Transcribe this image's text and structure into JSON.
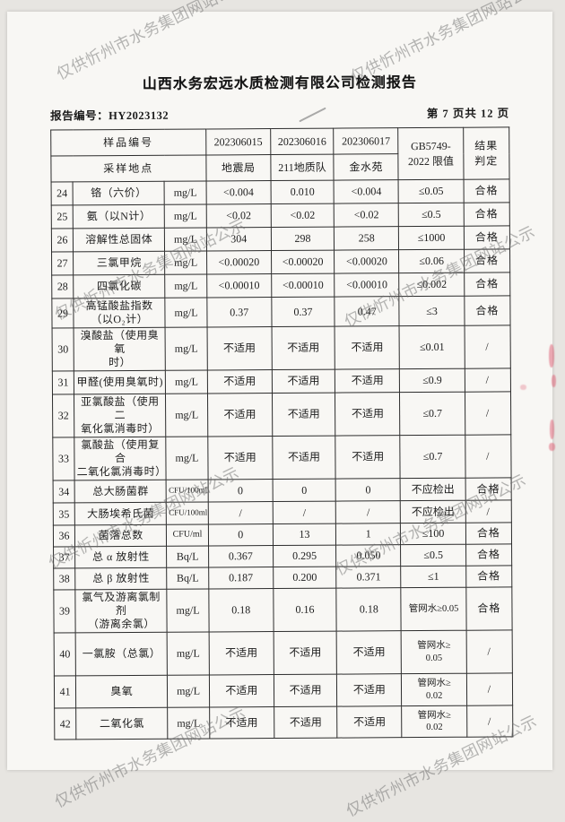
{
  "page": {
    "title": "山西水务宏远水质检测有限公司检测报告",
    "report_no": "报告编号：HY2023132",
    "page_indicator": "第 7 页共 12 页"
  },
  "watermark": {
    "text": "仅供忻州市水务集团网站公示"
  },
  "table": {
    "header": {
      "sample_id_label": "样品编号",
      "location_label": "采样地点",
      "sample_ids": [
        "202306015",
        "202306016",
        "202306017"
      ],
      "locations": [
        "地震局",
        "211地质队",
        "金水苑"
      ],
      "limit_line1": "GB5749-",
      "limit_line2": "2022 限值",
      "result_line1": "结果",
      "result_line2": "判定"
    },
    "rows": [
      {
        "no": "24",
        "name": "铬（六价）",
        "unit": "mg/L",
        "v1": "<0.004",
        "v2": "0.010",
        "v3": "<0.004",
        "limit": "≤0.05",
        "result": "合格"
      },
      {
        "no": "25",
        "name": "氨（以N计）",
        "unit": "mg/L",
        "v1": "<0.02",
        "v2": "<0.02",
        "v3": "<0.02",
        "limit": "≤0.5",
        "result": "合格"
      },
      {
        "no": "26",
        "name": "溶解性总固体",
        "unit": "mg/L",
        "v1": "304",
        "v2": "298",
        "v3": "258",
        "limit": "≤1000",
        "result": "合格"
      },
      {
        "no": "27",
        "name": "三氯甲烷",
        "unit": "mg/L",
        "v1": "<0.00020",
        "v2": "<0.00020",
        "v3": "<0.00020",
        "limit": "≤0.06",
        "result": "合格"
      },
      {
        "no": "28",
        "name": "四氯化碳",
        "unit": "mg/L",
        "v1": "<0.00010",
        "v2": "<0.00010",
        "v3": "<0.00010",
        "limit": "≤0.002",
        "result": "合格"
      },
      {
        "no": "29",
        "name": "高锰酸盐指数\n（以O₂计）",
        "unit": "mg/L",
        "v1": "0.37",
        "v2": "0.37",
        "v3": "0.47",
        "limit": "≤3",
        "result": "合格"
      },
      {
        "no": "30",
        "name": "溴酸盐（使用臭氧\n时）",
        "unit": "mg/L",
        "v1": "不适用",
        "v2": "不适用",
        "v3": "不适用",
        "limit": "≤0.01",
        "result": "/"
      },
      {
        "no": "31",
        "name": "甲醛(使用臭氧时)",
        "unit": "mg/L",
        "v1": "不适用",
        "v2": "不适用",
        "v3": "不适用",
        "limit": "≤0.9",
        "result": "/"
      },
      {
        "no": "32",
        "name": "亚氯酸盐（使用二\n氧化氯消毒时）",
        "unit": "mg/L",
        "v1": "不适用",
        "v2": "不适用",
        "v3": "不适用",
        "limit": "≤0.7",
        "result": "/"
      },
      {
        "no": "33",
        "name": "氯酸盐（使用复合\n二氧化氯消毒时）",
        "unit": "mg/L",
        "v1": "不适用",
        "v2": "不适用",
        "v3": "不适用",
        "limit": "≤0.7",
        "result": "/"
      },
      {
        "no": "34",
        "name": "总大肠菌群",
        "unit": "CFU/100ml",
        "v1": "0",
        "v2": "0",
        "v3": "0",
        "limit": "不应检出",
        "result": "合格"
      },
      {
        "no": "35",
        "name": "大肠埃希氏菌",
        "unit": "CFU/100ml",
        "v1": "/",
        "v2": "/",
        "v3": "/",
        "limit": "不应检出",
        "result": "/"
      },
      {
        "no": "36",
        "name": "菌落总数",
        "unit": "CFU/ml",
        "v1": "0",
        "v2": "13",
        "v3": "1",
        "limit": "≤100",
        "result": "合格"
      },
      {
        "no": "37",
        "name": "总 α 放射性",
        "unit": "Bq/L",
        "v1": "0.367",
        "v2": "0.295",
        "v3": "0.050",
        "limit": "≤0.5",
        "result": "合格"
      },
      {
        "no": "38",
        "name": "总 β 放射性",
        "unit": "Bq/L",
        "v1": "0.187",
        "v2": "0.200",
        "v3": "0.371",
        "limit": "≤1",
        "result": "合格"
      },
      {
        "no": "39",
        "name": "氯气及游离氯制剂\n（游离余氯）",
        "unit": "mg/L",
        "v1": "0.18",
        "v2": "0.16",
        "v3": "0.18",
        "limit": "管网水≥0.05",
        "result": "合格"
      },
      {
        "no": "40",
        "name": "一氯胺（总氯）",
        "unit": "mg/L",
        "v1": "不适用",
        "v2": "不适用",
        "v3": "不适用",
        "limit": "管网水≥\n0.05",
        "result": "/"
      },
      {
        "no": "41",
        "name": "臭氧",
        "unit": "mg/L",
        "v1": "不适用",
        "v2": "不适用",
        "v3": "不适用",
        "limit": "管网水≥\n0.02",
        "result": "/"
      },
      {
        "no": "42",
        "name": "二氧化氯",
        "unit": "mg/L",
        "v1": "不适用",
        "v2": "不适用",
        "v3": "不适用",
        "limit": "管网水≥\n0.02",
        "result": "/"
      }
    ]
  }
}
